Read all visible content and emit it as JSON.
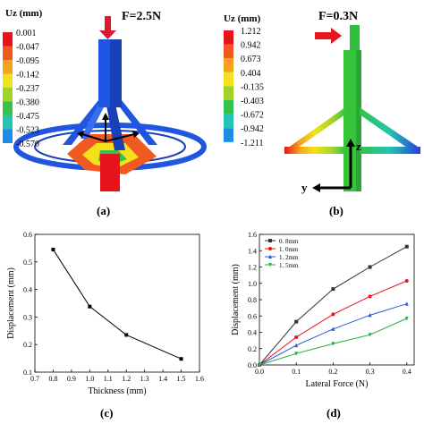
{
  "panels": {
    "a": {
      "label": "(a)",
      "legend_title": "Uz (mm)",
      "force_label": "F=2.5N",
      "colorbar": [
        "0.001",
        "-0.047",
        "-0.095",
        "-0.142",
        "-0.237",
        "-0.380",
        "-0.475",
        "-0.523",
        "-0.570"
      ],
      "colorbar_colors": [
        "#e8141b",
        "#f05a20",
        "#f7a21d",
        "#f2e11c",
        "#9fd32a",
        "#34c24a",
        "#22c4b5",
        "#1f8be6",
        "#2a3fd9"
      ]
    },
    "b": {
      "label": "(b)",
      "legend_title": "Uz (mm)",
      "force_label": "F=0.3N",
      "colorbar": [
        "1.212",
        "0.942",
        "0.673",
        "0.404",
        "-0.135",
        "-0.403",
        "-0.672",
        "-0.942",
        "-1.211"
      ],
      "colorbar_colors": [
        "#e8141b",
        "#f05a20",
        "#f7a21d",
        "#f2e11c",
        "#9fd32a",
        "#34c24a",
        "#22c4b5",
        "#1f8be6",
        "#2a3fd9"
      ],
      "axis_z": "z",
      "axis_y": "y"
    },
    "c": {
      "label": "(c)"
    },
    "d": {
      "label": "(d)"
    }
  },
  "chart_data": [
    {
      "type": "line",
      "xlabel": "Thickness (mm)",
      "ylabel": "Displacement (mm)",
      "xlim": [
        0.7,
        1.6
      ],
      "ylim": [
        0.1,
        0.6
      ],
      "xticks": [
        "0.7",
        "0.8",
        "0.9",
        "1.0",
        "1.1",
        "1.2",
        "1.3",
        "1.4",
        "1.5",
        "1.6"
      ],
      "yticks": [
        "0.1",
        "0.2",
        "0.3",
        "0.4",
        "0.5",
        "0.6"
      ],
      "series": [
        {
          "x": [
            0.8,
            1.0,
            1.2,
            1.5
          ],
          "values": [
            0.545,
            0.338,
            0.235,
            0.148
          ],
          "color": "#000000"
        }
      ]
    },
    {
      "type": "line",
      "xlabel": "Lateral Force (N)",
      "ylabel": "Displacement (mm)",
      "xlim": [
        0.0,
        0.42
      ],
      "ylim": [
        0.0,
        1.6
      ],
      "xticks": [
        "0.0",
        "0.1",
        "0.2",
        "0.3",
        "0.4"
      ],
      "yticks": [
        "0.0",
        "0.2",
        "0.4",
        "0.6",
        "0.8",
        "1.0",
        "1.2",
        "1.4",
        "1.6"
      ],
      "legend_position": "top-left",
      "series": [
        {
          "name": "0. 8mm",
          "color": "#333333",
          "marker": "square",
          "x": [
            0,
            0.1,
            0.2,
            0.3,
            0.4
          ],
          "values": [
            0,
            0.53,
            0.93,
            1.2,
            1.45
          ]
        },
        {
          "name": "1. 0mm",
          "color": "#e8141b",
          "marker": "circle",
          "x": [
            0,
            0.1,
            0.2,
            0.3,
            0.4
          ],
          "values": [
            0,
            0.34,
            0.62,
            0.84,
            1.03
          ]
        },
        {
          "name": "1. 2mm",
          "color": "#2a5ad9",
          "marker": "triangle",
          "x": [
            0,
            0.1,
            0.2,
            0.3,
            0.4
          ],
          "values": [
            0,
            0.24,
            0.44,
            0.61,
            0.75
          ]
        },
        {
          "name": "1. 5mm",
          "color": "#2ab04a",
          "marker": "triangle-down",
          "x": [
            0,
            0.1,
            0.2,
            0.3,
            0.4
          ],
          "values": [
            0,
            0.14,
            0.26,
            0.37,
            0.57
          ]
        }
      ]
    }
  ]
}
